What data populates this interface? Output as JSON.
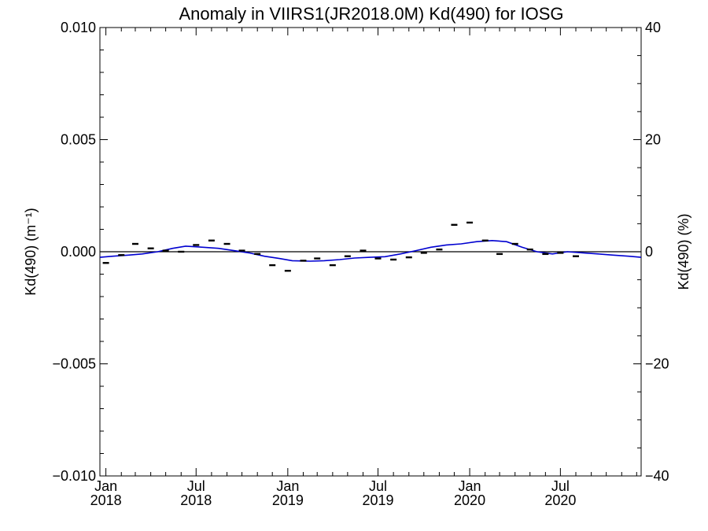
{
  "chart_data": {
    "type": "line",
    "title": "Anomaly in VIIRS1(JR2018.0M) Kd(490) for IOSG",
    "ylabel_left": "Kd(490) (m⁻¹)",
    "ylabel_right": "Kd(490) (%)",
    "x_tick_labels": [
      {
        "month": "Jan",
        "year": "2018",
        "date": "2018-01-01"
      },
      {
        "month": "Jul",
        "year": "2018",
        "date": "2018-07-01"
      },
      {
        "month": "Jan",
        "year": "2019",
        "date": "2019-01-01"
      },
      {
        "month": "Jul",
        "year": "2019",
        "date": "2019-07-01"
      },
      {
        "month": "Jan",
        "year": "2020",
        "date": "2020-01-01"
      },
      {
        "month": "Jul",
        "year": "2020",
        "date": "2020-07-01"
      }
    ],
    "xlim": [
      "2017-12-20",
      "2020-12-10"
    ],
    "ylim_left": [
      -0.01,
      0.01
    ],
    "ylim_right": [
      -40,
      40
    ],
    "y_ticks_left": [
      "0.010",
      "0.005",
      "0.000",
      "−0.005",
      "−0.010"
    ],
    "y_ticks_right": [
      "40",
      "20",
      "0",
      "−20",
      "−40"
    ],
    "zero_line": true,
    "series": [
      {
        "kind": "monthly_anomaly_markers",
        "color": "#000000",
        "points": [
          {
            "x": "2018-01-01",
            "y": -0.0005
          },
          {
            "x": "2018-02-01",
            "y": -0.00015
          },
          {
            "x": "2018-03-01",
            "y": 0.00035
          },
          {
            "x": "2018-04-01",
            "y": 0.00015
          },
          {
            "x": "2018-05-01",
            "y": 5e-05
          },
          {
            "x": "2018-06-01",
            "y": 0.0
          },
          {
            "x": "2018-07-01",
            "y": 0.0003
          },
          {
            "x": "2018-08-01",
            "y": 0.0005
          },
          {
            "x": "2018-09-01",
            "y": 0.00035
          },
          {
            "x": "2018-10-01",
            "y": 5e-05
          },
          {
            "x": "2018-11-01",
            "y": -0.0001
          },
          {
            "x": "2018-12-01",
            "y": -0.0006
          },
          {
            "x": "2019-01-01",
            "y": -0.00085
          },
          {
            "x": "2019-02-01",
            "y": -0.0004
          },
          {
            "x": "2019-03-01",
            "y": -0.0003
          },
          {
            "x": "2019-04-01",
            "y": -0.0006
          },
          {
            "x": "2019-05-01",
            "y": -0.0002
          },
          {
            "x": "2019-06-01",
            "y": 5e-05
          },
          {
            "x": "2019-07-01",
            "y": -0.0003
          },
          {
            "x": "2019-08-01",
            "y": -0.00035
          },
          {
            "x": "2019-09-01",
            "y": -0.00025
          },
          {
            "x": "2019-10-01",
            "y": -5e-05
          },
          {
            "x": "2019-11-01",
            "y": 0.0001
          },
          {
            "x": "2019-12-01",
            "y": 0.0012
          },
          {
            "x": "2020-01-01",
            "y": 0.0013
          },
          {
            "x": "2020-02-01",
            "y": 0.0005
          },
          {
            "x": "2020-03-01",
            "y": -0.0001
          },
          {
            "x": "2020-04-01",
            "y": 0.00035
          },
          {
            "x": "2020-05-01",
            "y": 0.0001
          },
          {
            "x": "2020-06-01",
            "y": -0.0001
          },
          {
            "x": "2020-07-01",
            "y": -5e-05
          },
          {
            "x": "2020-08-01",
            "y": -0.0002
          }
        ]
      },
      {
        "kind": "smoothed_curve",
        "color": "#0000d0",
        "points": [
          {
            "x": "2017-12-20",
            "y": -0.00025
          },
          {
            "x": "2018-01-15",
            "y": -0.0002
          },
          {
            "x": "2018-02-15",
            "y": -0.00015
          },
          {
            "x": "2018-03-15",
            "y": -0.0001
          },
          {
            "x": "2018-04-15",
            "y": 0.0
          },
          {
            "x": "2018-05-15",
            "y": 0.00015
          },
          {
            "x": "2018-06-10",
            "y": 0.00025
          },
          {
            "x": "2018-07-15",
            "y": 0.0002
          },
          {
            "x": "2018-08-15",
            "y": 0.00015
          },
          {
            "x": "2018-09-15",
            "y": 5e-05
          },
          {
            "x": "2018-10-15",
            "y": -5e-05
          },
          {
            "x": "2018-11-15",
            "y": -0.0002
          },
          {
            "x": "2018-12-15",
            "y": -0.0003
          },
          {
            "x": "2019-01-10",
            "y": -0.0004
          },
          {
            "x": "2019-02-15",
            "y": -0.00042
          },
          {
            "x": "2019-03-15",
            "y": -0.0004
          },
          {
            "x": "2019-04-15",
            "y": -0.00035
          },
          {
            "x": "2019-05-15",
            "y": -0.00028
          },
          {
            "x": "2019-06-15",
            "y": -0.00025
          },
          {
            "x": "2019-07-15",
            "y": -0.00022
          },
          {
            "x": "2019-08-15",
            "y": -0.0001
          },
          {
            "x": "2019-09-15",
            "y": 5e-05
          },
          {
            "x": "2019-10-15",
            "y": 0.0002
          },
          {
            "x": "2019-11-15",
            "y": 0.0003
          },
          {
            "x": "2019-12-15",
            "y": 0.00035
          },
          {
            "x": "2020-01-15",
            "y": 0.00045
          },
          {
            "x": "2020-02-15",
            "y": 0.0005
          },
          {
            "x": "2020-03-15",
            "y": 0.00045
          },
          {
            "x": "2020-04-15",
            "y": 0.0002
          },
          {
            "x": "2020-05-15",
            "y": 0.0
          },
          {
            "x": "2020-06-15",
            "y": -0.0001
          },
          {
            "x": "2020-07-15",
            "y": 0.0
          },
          {
            "x": "2020-08-15",
            "y": -5e-05
          },
          {
            "x": "2020-09-15",
            "y": -0.0001
          },
          {
            "x": "2020-10-15",
            "y": -0.00015
          },
          {
            "x": "2020-11-15",
            "y": -0.0002
          },
          {
            "x": "2020-12-10",
            "y": -0.00025
          }
        ]
      }
    ]
  }
}
